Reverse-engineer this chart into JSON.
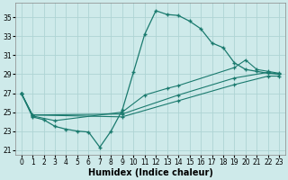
{
  "xlabel": "Humidex (Indice chaleur)",
  "ylabel": "",
  "xlim": [
    -0.5,
    23.5
  ],
  "ylim": [
    20.5,
    36.5
  ],
  "xticks": [
    0,
    1,
    2,
    3,
    4,
    5,
    6,
    7,
    8,
    9,
    10,
    11,
    12,
    13,
    14,
    15,
    16,
    17,
    18,
    19,
    20,
    21,
    22,
    23
  ],
  "yticks": [
    21,
    23,
    25,
    27,
    29,
    31,
    33,
    35
  ],
  "bg_color": "#ceeaea",
  "grid_color": "#aed4d4",
  "line_color": "#1a7a6e",
  "line1": {
    "x": [
      0,
      1,
      2,
      3,
      4,
      5,
      6,
      7,
      8,
      9,
      10,
      11,
      12,
      13,
      14,
      15,
      16,
      17,
      18,
      19,
      20,
      21,
      22,
      23
    ],
    "y": [
      27,
      24.5,
      24.2,
      23.5,
      23.2,
      23.0,
      22.9,
      21.3,
      23.0,
      25.2,
      29.2,
      33.2,
      35.7,
      35.3,
      35.2,
      34.6,
      33.8,
      32.3,
      31.8,
      30.2,
      29.5,
      29.3,
      29.1,
      29.0
    ]
  },
  "line2": {
    "x": [
      0,
      1,
      3,
      9,
      11,
      13,
      14,
      19,
      20,
      21,
      22,
      23
    ],
    "y": [
      27.0,
      24.6,
      24.1,
      25.0,
      26.8,
      27.5,
      27.8,
      29.7,
      30.5,
      29.5,
      29.3,
      29.1
    ]
  },
  "line3": {
    "x": [
      0,
      1,
      9,
      14,
      19,
      22,
      23
    ],
    "y": [
      27.0,
      24.7,
      24.8,
      26.8,
      28.6,
      29.2,
      29.0
    ]
  },
  "line4": {
    "x": [
      0,
      1,
      9,
      14,
      19,
      22,
      23
    ],
    "y": [
      27.0,
      24.7,
      24.5,
      26.2,
      27.9,
      28.8,
      28.8
    ]
  }
}
